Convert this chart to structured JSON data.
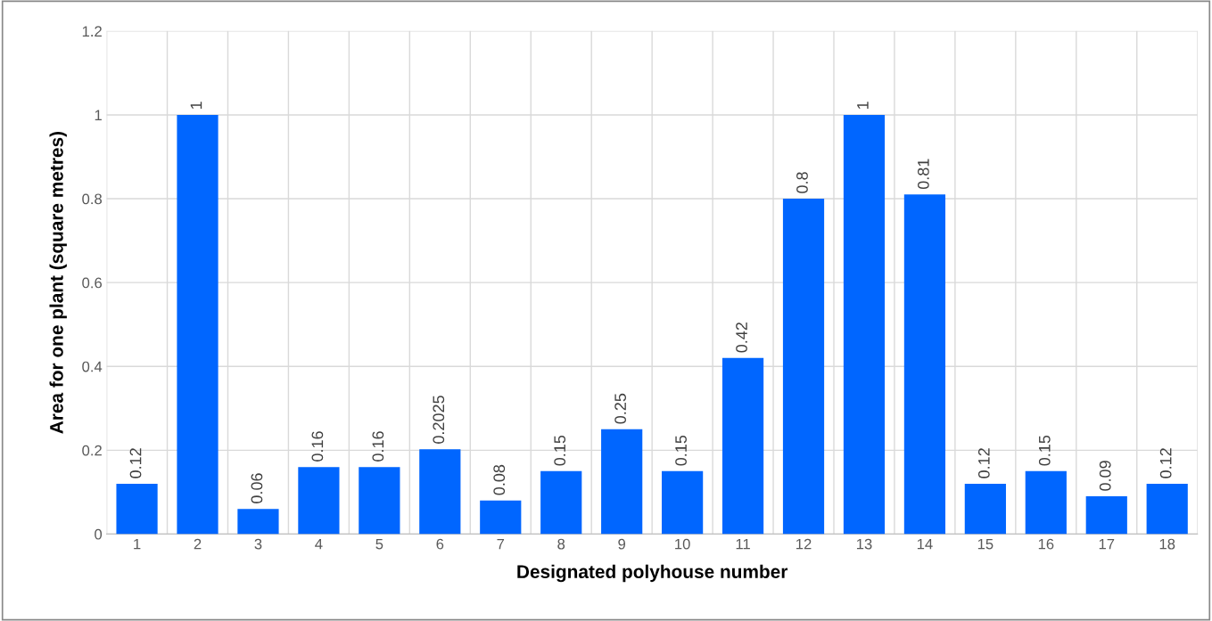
{
  "chart_data": {
    "type": "bar",
    "xlabel": "Designated polyhouse number",
    "ylabel": "Area for one plant (square metres)",
    "categories": [
      "1",
      "2",
      "3",
      "4",
      "5",
      "6",
      "7",
      "8",
      "9",
      "10",
      "11",
      "12",
      "13",
      "14",
      "15",
      "16",
      "17",
      "18"
    ],
    "values": [
      0.12,
      1,
      0.06,
      0.16,
      0.16,
      0.2025,
      0.08,
      0.15,
      0.25,
      0.15,
      0.42,
      0.8,
      1,
      0.81,
      0.12,
      0.15,
      0.09,
      0.12
    ],
    "color": "#0066ff",
    "ylim": [
      0,
      1.2
    ],
    "yticks": [
      0,
      0.2,
      0.4,
      0.6,
      0.8,
      1,
      1.2
    ],
    "grid": true,
    "data_labels": true
  }
}
